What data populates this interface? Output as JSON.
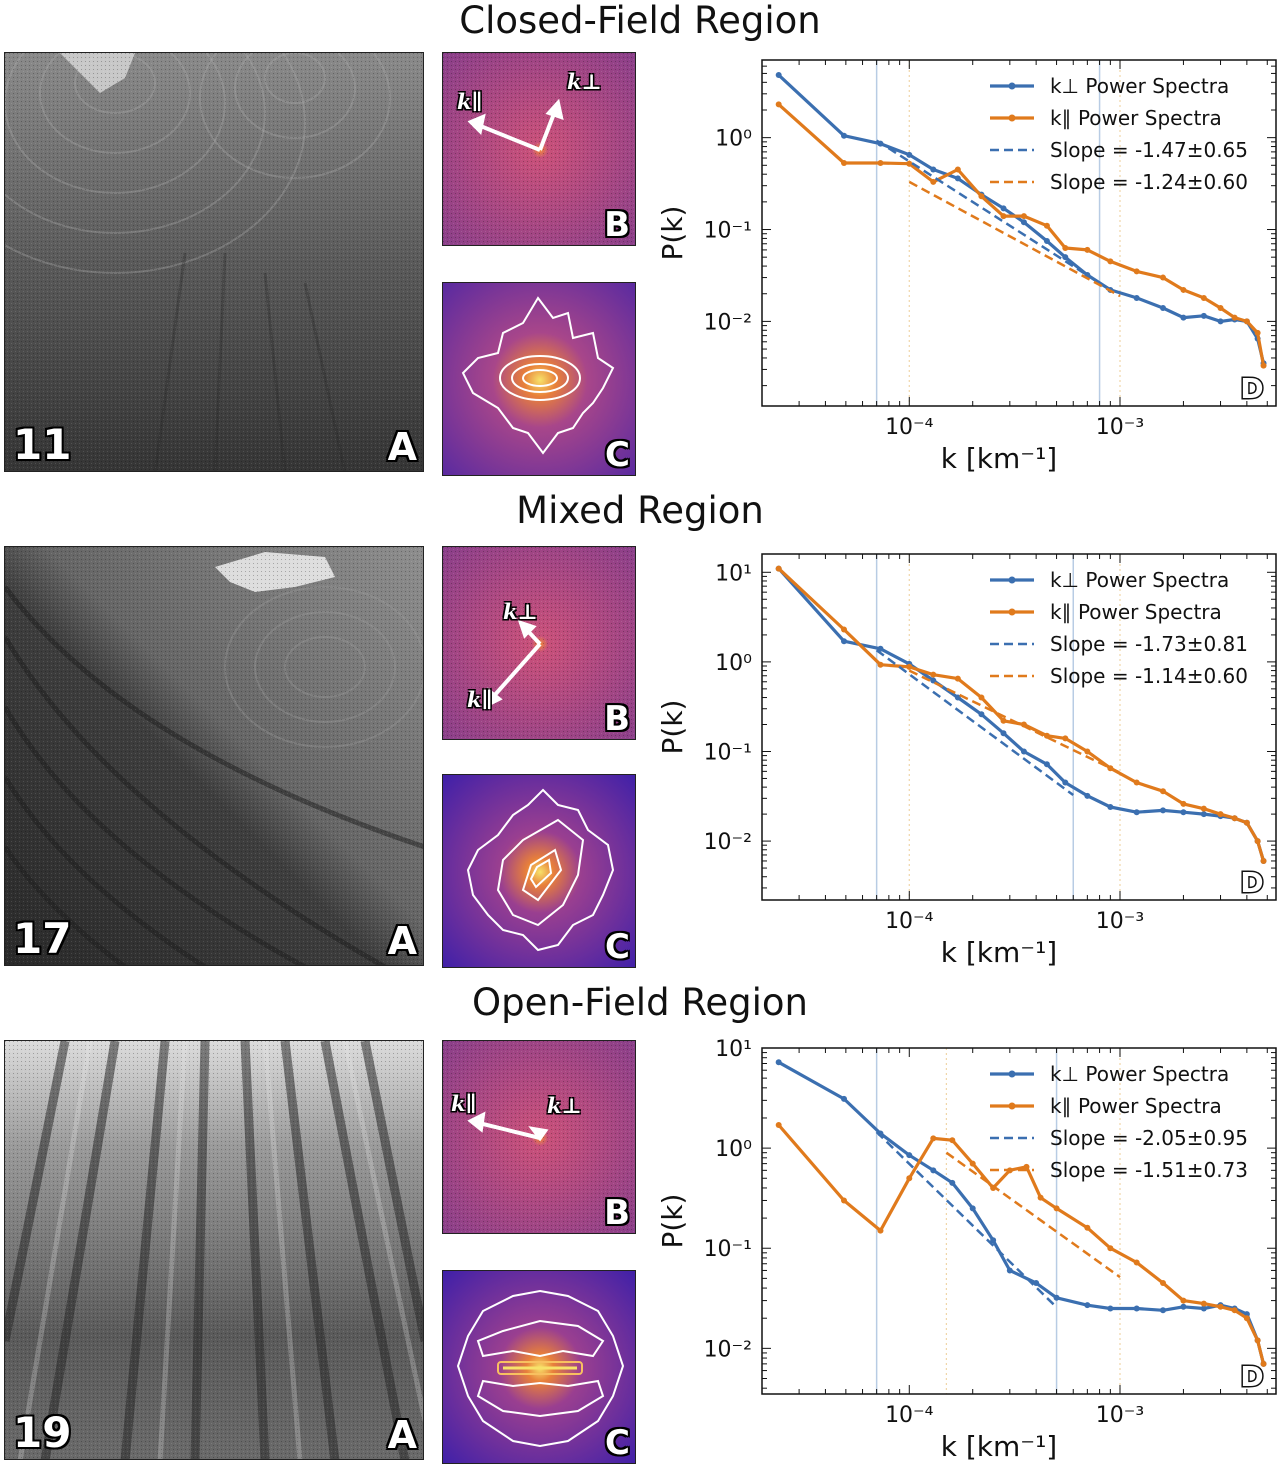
{
  "regions": [
    {
      "title": "Closed-Field Region",
      "image_number": "11",
      "panel_a_label": "A",
      "panel_b_label": "B",
      "panel_c_label": "C",
      "panel_d_label": "D",
      "arrow_labels": {
        "parallel": "k∥",
        "perp": "k⊥"
      }
    },
    {
      "title": "Mixed Region",
      "image_number": "17",
      "panel_a_label": "A",
      "panel_b_label": "B",
      "panel_c_label": "C",
      "panel_d_label": "D",
      "arrow_labels": {
        "parallel": "k∥",
        "perp": "k⊥"
      }
    },
    {
      "title": "Open-Field Region",
      "image_number": "19",
      "panel_a_label": "A",
      "panel_b_label": "B",
      "panel_c_label": "C",
      "panel_d_label": "D",
      "arrow_labels": {
        "parallel": "k∥",
        "perp": "k⊥"
      }
    }
  ],
  "colors": {
    "perp": "#3b6fb0",
    "par": "#e07a1c",
    "vline_blue": "#b8cce4",
    "vline_orange": "#f0d6a8"
  },
  "chart_data": [
    {
      "type": "line",
      "xlabel": "k [km⁻¹]",
      "ylabel": "P(k)",
      "xscale": "log",
      "yscale": "log",
      "xlim": [
        2e-05,
        0.0055
      ],
      "ylim": [
        0.0012,
        7.0
      ],
      "xticks": [
        {
          "value": 0.0001,
          "label": "10⁻⁴"
        },
        {
          "value": 0.001,
          "label": "10⁻³"
        }
      ],
      "yticks": [
        {
          "value": 1,
          "label": "10⁰"
        },
        {
          "value": 0.1,
          "label": "10⁻¹"
        },
        {
          "value": 0.01,
          "label": "10⁻²"
        }
      ],
      "legend_position": "top-right",
      "vlines_blue": [
        7e-05,
        0.0008
      ],
      "vlines_orange": [
        0.0001,
        0.001
      ],
      "series": [
        {
          "name": "k⊥ Power Spectra",
          "color": "#3b6fb0",
          "style": "solid-marker",
          "x": [
            2.4e-05,
            4.9e-05,
            7.3e-05,
            0.0001,
            0.00013,
            0.00017,
            0.00022,
            0.00028,
            0.00035,
            0.00045,
            0.00055,
            0.0007,
            0.0009,
            0.0012,
            0.0016,
            0.002,
            0.0025,
            0.003,
            0.0035,
            0.004,
            0.0045,
            0.0048
          ],
          "y": [
            4.8,
            1.05,
            0.86,
            0.65,
            0.45,
            0.36,
            0.24,
            0.17,
            0.12,
            0.075,
            0.05,
            0.032,
            0.022,
            0.018,
            0.014,
            0.011,
            0.0115,
            0.01,
            0.0105,
            0.01,
            0.0065,
            0.0035
          ]
        },
        {
          "name": "k∥ Power Spectra",
          "color": "#e07a1c",
          "style": "solid-marker",
          "x": [
            2.4e-05,
            4.9e-05,
            7.3e-05,
            0.0001,
            0.00013,
            0.00017,
            0.00022,
            0.00028,
            0.00035,
            0.00045,
            0.00055,
            0.0007,
            0.0009,
            0.0012,
            0.0016,
            0.002,
            0.0025,
            0.003,
            0.0035,
            0.004,
            0.0045,
            0.0048
          ],
          "y": [
            2.3,
            0.53,
            0.53,
            0.52,
            0.33,
            0.45,
            0.23,
            0.14,
            0.14,
            0.11,
            0.063,
            0.06,
            0.045,
            0.035,
            0.03,
            0.022,
            0.018,
            0.014,
            0.011,
            0.01,
            0.0075,
            0.0033
          ]
        },
        {
          "name": "Slope = -1.47±0.65",
          "color": "#3b6fb0",
          "style": "dashed",
          "x": [
            7e-05,
            0.0008
          ],
          "y": [
            0.93,
            0.0261
          ]
        },
        {
          "name": "Slope = -1.24±0.60",
          "color": "#e07a1c",
          "style": "dashed",
          "x": [
            0.0001,
            0.001
          ],
          "y": [
            0.33,
            0.0189
          ]
        }
      ]
    },
    {
      "type": "line",
      "xlabel": "k [km⁻¹]",
      "ylabel": "P(k)",
      "xscale": "log",
      "yscale": "log",
      "xlim": [
        2e-05,
        0.0055
      ],
      "ylim": [
        0.0022,
        16.0
      ],
      "xticks": [
        {
          "value": 0.0001,
          "label": "10⁻⁴"
        },
        {
          "value": 0.001,
          "label": "10⁻³"
        }
      ],
      "yticks": [
        {
          "value": 10,
          "label": "10¹"
        },
        {
          "value": 1,
          "label": "10⁰"
        },
        {
          "value": 0.1,
          "label": "10⁻¹"
        },
        {
          "value": 0.01,
          "label": "10⁻²"
        }
      ],
      "legend_position": "top-right",
      "vlines_blue": [
        7e-05,
        0.0006
      ],
      "vlines_orange": [
        0.0001,
        0.001
      ],
      "series": [
        {
          "name": "k⊥ Power Spectra",
          "color": "#3b6fb0",
          "style": "solid-marker",
          "x": [
            2.4e-05,
            4.9e-05,
            7.3e-05,
            0.0001,
            0.00013,
            0.00017,
            0.00022,
            0.00028,
            0.00035,
            0.00045,
            0.00055,
            0.0007,
            0.0009,
            0.0012,
            0.0016,
            0.002,
            0.0025,
            0.003,
            0.0035,
            0.004,
            0.0045,
            0.0048
          ],
          "y": [
            11.0,
            1.7,
            1.4,
            0.95,
            0.62,
            0.4,
            0.26,
            0.16,
            0.1,
            0.072,
            0.045,
            0.032,
            0.024,
            0.021,
            0.022,
            0.021,
            0.02,
            0.019,
            0.018,
            0.016,
            0.01,
            0.006
          ]
        },
        {
          "name": "k∥ Power Spectra",
          "color": "#e07a1c",
          "style": "solid-marker",
          "x": [
            2.4e-05,
            4.9e-05,
            7.3e-05,
            0.0001,
            0.00013,
            0.00017,
            0.00022,
            0.00028,
            0.00035,
            0.00045,
            0.00055,
            0.0007,
            0.0009,
            0.0012,
            0.0016,
            0.002,
            0.0025,
            0.003,
            0.0035,
            0.004,
            0.0045,
            0.0048
          ],
          "y": [
            11.0,
            2.3,
            0.93,
            0.88,
            0.72,
            0.65,
            0.4,
            0.22,
            0.2,
            0.15,
            0.14,
            0.1,
            0.065,
            0.045,
            0.036,
            0.026,
            0.023,
            0.02,
            0.018,
            0.016,
            0.01,
            0.006
          ]
        },
        {
          "name": "Slope = -1.73±0.81",
          "color": "#3b6fb0",
          "style": "dashed",
          "x": [
            7e-05,
            0.0006
          ],
          "y": [
            1.35,
            0.0327
          ]
        },
        {
          "name": "Slope = -1.14±0.60",
          "color": "#e07a1c",
          "style": "dashed",
          "x": [
            0.0001,
            0.001
          ],
          "y": [
            0.8,
            0.0579
          ]
        }
      ]
    },
    {
      "type": "line",
      "xlabel": "k [km⁻¹]",
      "ylabel": "P(k)",
      "xscale": "log",
      "yscale": "log",
      "xlim": [
        2e-05,
        0.0055
      ],
      "ylim": [
        0.0035,
        10.0
      ],
      "xticks": [
        {
          "value": 0.0001,
          "label": "10⁻⁴"
        },
        {
          "value": 0.001,
          "label": "10⁻³"
        }
      ],
      "yticks": [
        {
          "value": 10,
          "label": "10¹"
        },
        {
          "value": 1,
          "label": "10⁰"
        },
        {
          "value": 0.1,
          "label": "10⁻¹"
        },
        {
          "value": 0.01,
          "label": "10⁻²"
        }
      ],
      "legend_position": "top-right",
      "vlines_blue": [
        7e-05,
        0.0005
      ],
      "vlines_orange": [
        0.00015,
        0.001
      ],
      "series": [
        {
          "name": "k⊥ Power Spectra",
          "color": "#3b6fb0",
          "style": "solid-marker",
          "x": [
            2.4e-05,
            4.9e-05,
            7.3e-05,
            0.0001,
            0.00013,
            0.00016,
            0.0002,
            0.00025,
            0.0003,
            0.0004,
            0.0005,
            0.0007,
            0.0009,
            0.0012,
            0.0016,
            0.002,
            0.0025,
            0.003,
            0.0035,
            0.004,
            0.0045,
            0.0048
          ],
          "y": [
            7.2,
            3.1,
            1.4,
            0.85,
            0.6,
            0.45,
            0.25,
            0.12,
            0.06,
            0.045,
            0.032,
            0.027,
            0.025,
            0.025,
            0.024,
            0.026,
            0.025,
            0.027,
            0.025,
            0.022,
            0.012,
            0.007
          ]
        },
        {
          "name": "k∥ Power Spectra",
          "color": "#e07a1c",
          "style": "solid-marker",
          "x": [
            2.4e-05,
            4.9e-05,
            7.3e-05,
            0.0001,
            0.00013,
            0.00016,
            0.0002,
            0.00025,
            0.0003,
            0.00036,
            0.00042,
            0.0005,
            0.0007,
            0.0009,
            0.0012,
            0.0016,
            0.002,
            0.0025,
            0.003,
            0.0035,
            0.004,
            0.0045,
            0.0048
          ],
          "y": [
            1.7,
            0.3,
            0.15,
            0.5,
            1.25,
            1.2,
            0.7,
            0.4,
            0.6,
            0.65,
            0.32,
            0.25,
            0.16,
            0.1,
            0.072,
            0.045,
            0.03,
            0.028,
            0.026,
            0.024,
            0.02,
            0.012,
            0.007
          ]
        },
        {
          "name": "Slope = -2.05±0.95",
          "color": "#3b6fb0",
          "style": "dashed",
          "x": [
            7e-05,
            0.0005
          ],
          "y": [
            1.45,
            0.0257
          ]
        },
        {
          "name": "Slope = -1.51±0.73",
          "color": "#e07a1c",
          "style": "dashed",
          "x": [
            0.00015,
            0.001
          ],
          "y": [
            0.9,
            0.0515
          ]
        }
      ]
    }
  ]
}
